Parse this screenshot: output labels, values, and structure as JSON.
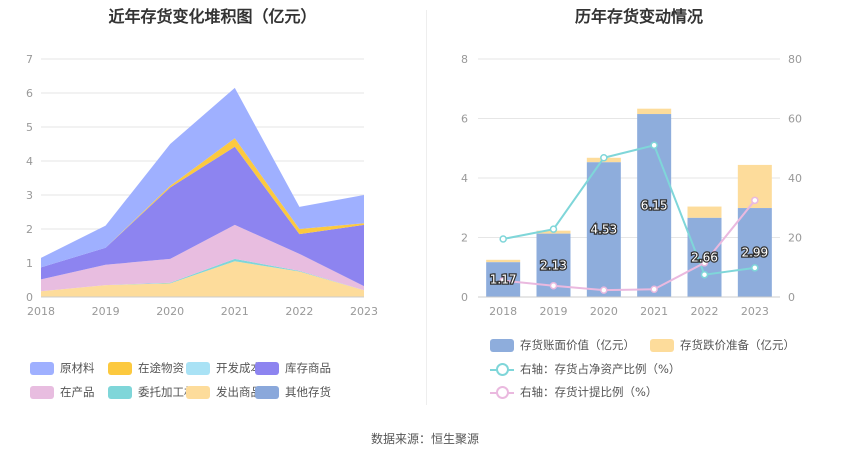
{
  "source_text": "数据来源：恒生聚源",
  "chart_data": [
    {
      "type": "area",
      "title": "近年存货变化堆积图（亿元）",
      "x": [
        "2018",
        "2019",
        "2020",
        "2021",
        "2022",
        "2023"
      ],
      "ylim": [
        0,
        7
      ],
      "yticks": [
        0,
        1,
        2,
        3,
        4,
        5,
        6,
        7
      ],
      "grid": true,
      "legend_position": "bottom",
      "series": [
        {
          "name": "发出商品",
          "color": "#fddc9b",
          "values": [
            0.17,
            0.35,
            0.4,
            1.05,
            0.75,
            0.2
          ]
        },
        {
          "name": "委托加工材料",
          "color": "#7fd6d9",
          "values": [
            0.0,
            0.0,
            0.02,
            0.07,
            0.02,
            0.0
          ]
        },
        {
          "name": "在产品",
          "color": "#e8bde0",
          "values": [
            0.35,
            0.6,
            0.7,
            1.0,
            0.5,
            0.12
          ]
        },
        {
          "name": "库存商品",
          "color": "#8d84f0",
          "values": [
            0.35,
            0.5,
            2.1,
            2.3,
            0.58,
            1.8
          ]
        },
        {
          "name": "开发成本",
          "color": "#a9e2f5",
          "values": [
            0.0,
            0.0,
            0.0,
            0.0,
            0.0,
            0.0
          ]
        },
        {
          "name": "在途物资",
          "color": "#fcc93f",
          "values": [
            0.0,
            0.0,
            0.05,
            0.25,
            0.15,
            0.05
          ]
        },
        {
          "name": "原材料",
          "color": "#9fb0ff",
          "values": [
            0.28,
            0.65,
            1.23,
            1.48,
            0.65,
            0.83
          ]
        },
        {
          "name": "其他存货",
          "color": "#8aa8db",
          "values": [
            0.0,
            0.0,
            0.0,
            0.0,
            0.0,
            0.0
          ]
        }
      ],
      "legend_order": [
        "原材料",
        "在途物资",
        "开发成本",
        "库存商品",
        "在产品",
        "委托加工材料",
        "发出商品",
        "其他存货"
      ]
    },
    {
      "type": "bar",
      "title": "历年存货变动情况",
      "categories": [
        "2018",
        "2019",
        "2020",
        "2021",
        "2022",
        "2023"
      ],
      "ylim": [
        0,
        8
      ],
      "yticks": [
        0,
        2,
        4,
        6,
        8
      ],
      "y2lim": [
        0,
        80
      ],
      "y2ticks": [
        0,
        20,
        40,
        60,
        80
      ],
      "legend_position": "bottom",
      "series": [
        {
          "name": "存货账面价值（亿元）",
          "kind": "bar",
          "color": "#8eaddc",
          "values": [
            1.17,
            2.13,
            4.53,
            6.15,
            2.66,
            2.99
          ],
          "labels": [
            "1.17",
            "2.13",
            "4.53",
            "6.15",
            "2.66",
            "2.99"
          ]
        },
        {
          "name": "存货跌价准备（亿元）",
          "kind": "bar-stack",
          "color": "#fddc9b",
          "values": [
            0.08,
            0.1,
            0.15,
            0.18,
            0.38,
            1.45
          ]
        },
        {
          "name": "右轴：存货占净资产比例（%）",
          "kind": "line",
          "axis": "right",
          "color": "#7fd6d9",
          "values": [
            19.5,
            22.8,
            46.8,
            51.0,
            7.5,
            9.8
          ]
        },
        {
          "name": "右轴：存货计提比例（%）",
          "kind": "line",
          "axis": "right",
          "color": "#eab9df",
          "values": [
            5.5,
            3.8,
            2.3,
            2.6,
            11.5,
            32.5
          ]
        }
      ]
    }
  ]
}
